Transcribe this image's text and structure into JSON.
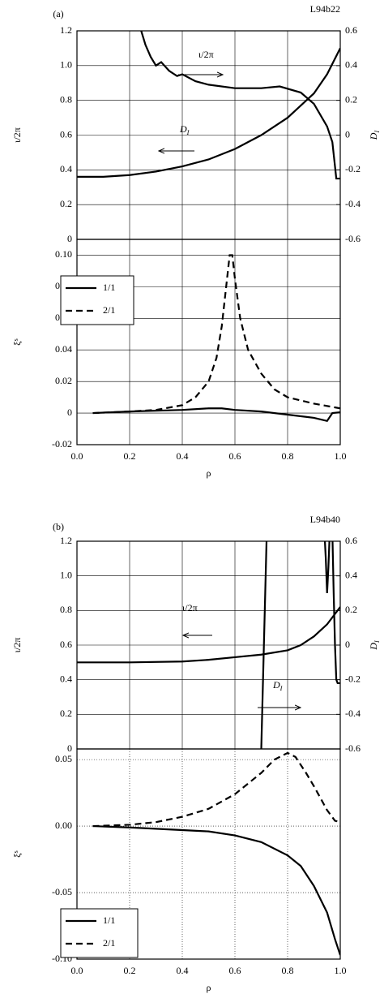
{
  "chart_data": [
    {
      "type": "line",
      "panel_label": "(a)",
      "run_label": "L94b22",
      "ylabel": "ι/2π",
      "y2label": "DI",
      "xlim": [
        0,
        1
      ],
      "xticks": [
        0,
        0.2,
        0.4,
        0.6,
        0.8,
        1
      ],
      "ylim": [
        0,
        1.2
      ],
      "yticks": [
        0,
        0.2,
        0.4,
        0.6,
        0.8,
        {
          "value": 1,
          "label": "1.0"
        },
        1.2
      ],
      "y2lim": [
        -0.6,
        0.6
      ],
      "y2ticks": [
        -0.6,
        -0.4,
        -0.2,
        0,
        0.2,
        0.4,
        0.6
      ],
      "grid": true,
      "grid_style": "solid",
      "series": [
        {
          "name": "ι/2π",
          "color": "#000000",
          "dash": "solid",
          "axis": "y",
          "x": [
            0,
            0.1,
            0.2,
            0.3,
            0.4,
            0.5,
            0.6,
            0.7,
            0.8,
            0.9,
            0.95,
            1.0
          ],
          "values": [
            0.36,
            0.36,
            0.37,
            0.39,
            0.42,
            0.46,
            0.52,
            0.6,
            0.7,
            0.84,
            0.95,
            1.1
          ]
        },
        {
          "name": "DI",
          "color": "#000000",
          "dash": "solid",
          "axis": "y2",
          "x": [
            0.24,
            0.26,
            0.28,
            0.3,
            0.32,
            0.35,
            0.38,
            0.4,
            0.45,
            0.5,
            0.6,
            0.7,
            0.77,
            0.85,
            0.9,
            0.95,
            0.97,
            0.98,
            0.985,
            1.0
          ],
          "values": [
            0.62,
            0.52,
            0.45,
            0.4,
            0.42,
            0.37,
            0.34,
            0.35,
            0.31,
            0.29,
            0.27,
            0.27,
            0.28,
            0.245,
            0.18,
            0.05,
            -0.04,
            -0.18,
            -0.25,
            -0.25
          ]
        }
      ]
    },
    {
      "type": "line",
      "ylabel": "ξs",
      "xlabel": "ρ",
      "xlim": [
        0,
        1
      ],
      "xticks": [
        {
          "value": 0,
          "label": "0.0"
        },
        0.2,
        0.4,
        0.6,
        0.8,
        {
          "value": 1,
          "label": "1.0"
        }
      ],
      "ylim": [
        -0.02,
        0.11
      ],
      "yticks": [
        -0.02,
        0,
        0.02,
        0.04,
        0.06,
        0.08,
        {
          "value": 0.1,
          "label": "0.10"
        }
      ],
      "grid": true,
      "grid_style": "solid",
      "legend": "upper left",
      "series": [
        {
          "name": "1/1",
          "color": "#000000",
          "dash": "solid",
          "x": [
            0.06,
            0.2,
            0.4,
            0.5,
            0.55,
            0.6,
            0.7,
            0.8,
            0.9,
            0.95,
            0.97,
            1.0
          ],
          "values": [
            0,
            0.001,
            0.002,
            0.003,
            0.003,
            0.002,
            0.001,
            -0.001,
            -0.003,
            -0.005,
            0,
            0.0005
          ]
        },
        {
          "name": "2/1",
          "color": "#000000",
          "dash": "dashed",
          "x": [
            0.06,
            0.2,
            0.3,
            0.4,
            0.45,
            0.5,
            0.53,
            0.55,
            0.57,
            0.58,
            0.59,
            0.6,
            0.62,
            0.65,
            0.7,
            0.75,
            0.8,
            0.9,
            1.0
          ],
          "values": [
            0,
            0.001,
            0.002,
            0.005,
            0.01,
            0.02,
            0.035,
            0.055,
            0.085,
            0.1,
            0.1,
            0.085,
            0.06,
            0.04,
            0.025,
            0.015,
            0.01,
            0.006,
            0.003
          ]
        }
      ]
    },
    {
      "type": "line",
      "panel_label": "(b)",
      "run_label": "L94b40",
      "ylabel": "ι/2π",
      "y2label": "DI",
      "xlim": [
        0,
        1
      ],
      "xticks": [
        0,
        0.2,
        0.4,
        0.6,
        0.8,
        1
      ],
      "ylim": [
        0,
        1.2
      ],
      "yticks": [
        0,
        0.2,
        0.4,
        0.6,
        0.8,
        {
          "value": 1,
          "label": "1.0"
        },
        1.2
      ],
      "y2lim": [
        -0.6,
        0.6
      ],
      "y2ticks": [
        -0.6,
        -0.4,
        -0.2,
        0,
        0.2,
        0.4,
        0.6
      ],
      "grid": true,
      "grid_style": "solid",
      "series": [
        {
          "name": "ι/2π",
          "color": "#000000",
          "dash": "solid",
          "axis": "y",
          "x": [
            0,
            0.2,
            0.4,
            0.5,
            0.6,
            0.7,
            0.8,
            0.85,
            0.9,
            0.95,
            1.0
          ],
          "values": [
            0.5,
            0.5,
            0.505,
            0.515,
            0.53,
            0.545,
            0.57,
            0.6,
            0.65,
            0.72,
            0.82
          ]
        },
        {
          "name": "DI",
          "color": "#000000",
          "dash": "solid",
          "axis": "y2",
          "x": [
            0.7,
            0.705,
            0.71,
            0.715,
            0.72,
            0.725,
            0.93,
            0.94,
            0.945,
            0.95,
            0.955,
            0.96,
            0.965,
            0.97,
            0.975,
            0.98,
            0.985,
            0.99,
            1.0
          ],
          "values": [
            -0.6,
            -0.3,
            0,
            0.3,
            0.6,
            0.65,
            null,
            0.65,
            0.5,
            0.3,
            0.45,
            0.65,
            null,
            0.65,
            0.3,
            0,
            -0.2,
            -0.22,
            -0.22
          ]
        }
      ]
    },
    {
      "type": "line",
      "ylabel": "ξs",
      "xlabel": "ρ",
      "xlim": [
        0,
        1
      ],
      "xticks": [
        {
          "value": 0,
          "label": "0.0"
        },
        0.2,
        0.4,
        0.6,
        0.8,
        {
          "value": 1,
          "label": "1.0"
        }
      ],
      "ylim": [
        -0.1,
        0.058
      ],
      "yticks": [
        {
          "value": -0.1,
          "label": "-0.10"
        },
        -0.05,
        {
          "value": 0,
          "label": "0.00"
        },
        0.05
      ],
      "grid": true,
      "grid_style": "dotted",
      "legend": "lower left",
      "series": [
        {
          "name": "1/1",
          "color": "#000000",
          "dash": "solid",
          "x": [
            0.06,
            0.2,
            0.4,
            0.5,
            0.6,
            0.7,
            0.8,
            0.85,
            0.9,
            0.95,
            0.98,
            1.0
          ],
          "values": [
            0,
            -0.001,
            -0.003,
            -0.004,
            -0.007,
            -0.012,
            -0.022,
            -0.03,
            -0.045,
            -0.065,
            -0.085,
            -0.097
          ]
        },
        {
          "name": "2/1",
          "color": "#000000",
          "dash": "dashed",
          "x": [
            0.06,
            0.2,
            0.3,
            0.4,
            0.5,
            0.6,
            0.7,
            0.75,
            0.8,
            0.83,
            0.87,
            0.9,
            0.95,
            0.98,
            1.0
          ],
          "values": [
            0,
            0.001,
            0.003,
            0.007,
            0.013,
            0.024,
            0.04,
            0.05,
            0.055,
            0.052,
            0.04,
            0.03,
            0.012,
            0.004,
            0.003
          ]
        }
      ]
    }
  ]
}
